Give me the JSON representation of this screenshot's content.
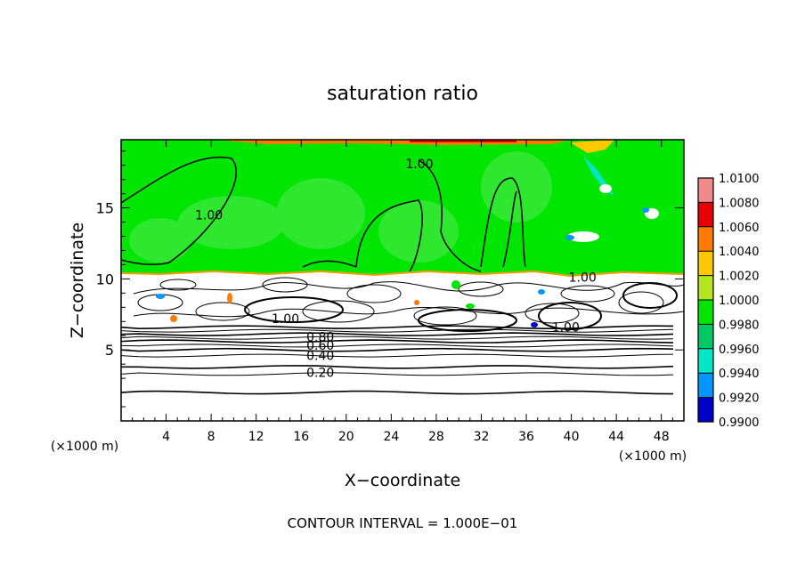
{
  "chart_data": {
    "type": "heatmap",
    "title": "saturation ratio",
    "xlabel": "X−coordinate",
    "ylabel": "Z−coordinate",
    "x_unit_label": "(×1000 m)",
    "z_unit_label": "(×1000 m)",
    "footer": "CONTOUR INTERVAL = 1.000E−01",
    "xlim": [
      0,
      50
    ],
    "ylim": [
      0,
      19.8
    ],
    "x_ticks": [
      "4",
      "8",
      "12",
      "16",
      "20",
      "24",
      "28",
      "32",
      "36",
      "40",
      "44",
      "48"
    ],
    "y_ticks": [
      "5",
      "10",
      "15"
    ],
    "colorbar": {
      "levels": [
        "1.0100",
        "1.0080",
        "1.0060",
        "1.0040",
        "1.0020",
        "1.0000",
        "0.9980",
        "0.9960",
        "0.9940",
        "0.9920",
        "0.9900"
      ],
      "colors": [
        "#f08a8a",
        "#e60000",
        "#ff7a00",
        "#ffc800",
        "#b4e61e",
        "#00e600",
        "#00c864",
        "#00e6c8",
        "#0096ff",
        "#0000c8",
        "#6400a0"
      ]
    },
    "regions": [
      {
        "name": "saturated layer",
        "z_range": [
          10.5,
          19.8
        ],
        "approx_value": 1.0
      }
    ],
    "contour_labels": [
      {
        "text": "1.00",
        "x": 7.8,
        "z": 14.2
      },
      {
        "text": "1.00",
        "x": 26.5,
        "z": 17.8
      },
      {
        "text": "1.00",
        "x": 41.0,
        "z": 9.8
      },
      {
        "text": "1.00",
        "x": 14.6,
        "z": 6.9
      },
      {
        "text": "1.00",
        "x": 39.5,
        "z": 6.3
      },
      {
        "text": "0.80",
        "x": 17.7,
        "z": 5.6
      },
      {
        "text": "0.60",
        "x": 17.7,
        "z": 5.0
      },
      {
        "text": "0.40",
        "x": 17.7,
        "z": 4.3
      },
      {
        "text": "0.20",
        "x": 17.7,
        "z": 3.1
      }
    ],
    "horizontal_contours_z": [
      2.0,
      3.3,
      3.8,
      4.6,
      5.0,
      5.3,
      5.6,
      5.85,
      6.1,
      6.35,
      6.6
    ]
  }
}
